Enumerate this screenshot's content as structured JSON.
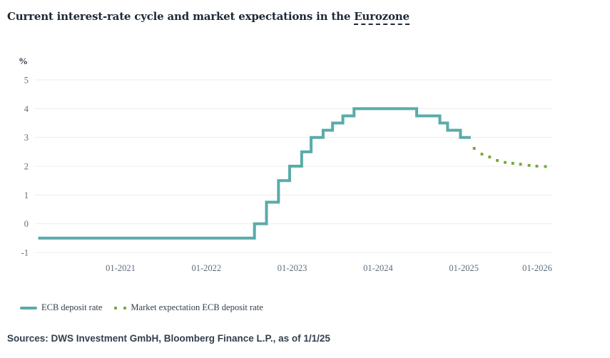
{
  "title": {
    "prefix": "Current interest-rate cycle and market expectations in the ",
    "highlight": "Eurozone"
  },
  "legend": {
    "items": [
      {
        "label": "ECB deposit rate"
      },
      {
        "label": "Market expectation ECB deposit rate"
      }
    ]
  },
  "footer": {
    "sources": "Sources: DWS Investment GmbH, Bloomberg Finance L.P., as of 1/1/25"
  },
  "colors": {
    "title_text": "#1e2936",
    "tick_text": "#5e6d7d",
    "unit_text": "#2e3944",
    "legend_text": "#333e49",
    "sources_text": "#333f4d",
    "grid": "#ececec",
    "ecb_line": "#5aabaa",
    "expectation_dots": "#77a93c"
  },
  "chart_data": {
    "type": "line",
    "title": "Current interest-rate cycle and market expectations in the Eurozone",
    "ylabel": "%",
    "xlabel": "",
    "ylim": [
      -1,
      5
    ],
    "yticks": [
      5,
      4,
      3,
      2,
      1,
      0,
      -1
    ],
    "grid": true,
    "legend_position": "bottom-left",
    "xticks": [
      {
        "label": "01-2021",
        "t": 2021.0
      },
      {
        "label": "01-2022",
        "t": 2022.0
      },
      {
        "label": "01-2023",
        "t": 2023.0
      },
      {
        "label": "01-2024",
        "t": 2024.0
      },
      {
        "label": "01-2025",
        "t": 2025.0
      },
      {
        "label": "01-2026",
        "t": 2026.0
      }
    ],
    "series": [
      {
        "name": "ECB deposit rate",
        "style": "step-line",
        "color": "#5aabaa",
        "points": [
          {
            "date": "2020-01",
            "t": 2020.04,
            "rate": -0.5
          },
          {
            "date": "2022-07",
            "t": 2022.56,
            "rate": 0.0
          },
          {
            "date": "2022-09",
            "t": 2022.7,
            "rate": 0.75
          },
          {
            "date": "2022-11",
            "t": 2022.84,
            "rate": 1.5
          },
          {
            "date": "2022-12",
            "t": 2022.97,
            "rate": 2.0
          },
          {
            "date": "2023-02",
            "t": 2023.11,
            "rate": 2.5
          },
          {
            "date": "2023-03",
            "t": 2023.22,
            "rate": 3.0
          },
          {
            "date": "2023-05",
            "t": 2023.36,
            "rate": 3.25
          },
          {
            "date": "2023-06",
            "t": 2023.47,
            "rate": 3.5
          },
          {
            "date": "2023-08",
            "t": 2023.59,
            "rate": 3.75
          },
          {
            "date": "2023-09",
            "t": 2023.72,
            "rate": 4.0
          },
          {
            "date": "2024-06",
            "t": 2024.45,
            "rate": 3.75
          },
          {
            "date": "2024-09",
            "t": 2024.72,
            "rate": 3.5
          },
          {
            "date": "2024-10",
            "t": 2024.81,
            "rate": 3.25
          },
          {
            "date": "2024-12",
            "t": 2024.96,
            "rate": 3.0
          }
        ],
        "end_t": 2025.08
      },
      {
        "name": "Market expectation ECB deposit rate",
        "style": "dots",
        "color": "#77a93c",
        "points": [
          {
            "date": "2025-02",
            "t": 2025.12,
            "rate": 2.62
          },
          {
            "date": "2025-03",
            "t": 2025.21,
            "rate": 2.42
          },
          {
            "date": "2025-04",
            "t": 2025.3,
            "rate": 2.32
          },
          {
            "date": "2025-05",
            "t": 2025.39,
            "rate": 2.2
          },
          {
            "date": "2025-06",
            "t": 2025.48,
            "rate": 2.13
          },
          {
            "date": "2025-07",
            "t": 2025.57,
            "rate": 2.1
          },
          {
            "date": "2025-08",
            "t": 2025.66,
            "rate": 2.07
          },
          {
            "date": "2025-09",
            "t": 2025.76,
            "rate": 2.03
          },
          {
            "date": "2025-10",
            "t": 2025.85,
            "rate": 2.0
          },
          {
            "date": "2025-11",
            "t": 2025.95,
            "rate": 1.99
          }
        ]
      }
    ]
  }
}
